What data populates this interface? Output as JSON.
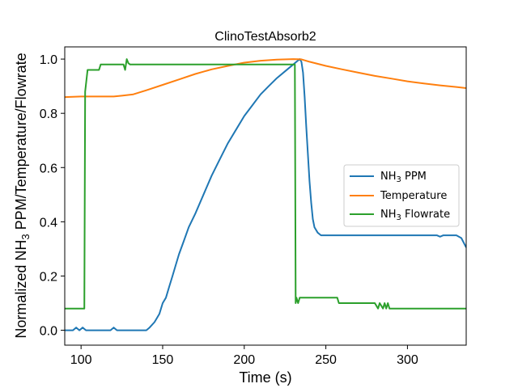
{
  "chart_data": {
    "type": "line",
    "title": "ClinoTestAbsorb2",
    "xlabel": "Time (s)",
    "ylabel_parts": [
      "Normalized NH",
      "3",
      " PPM/Temperature/Flowrate"
    ],
    "xlim": [
      90,
      336
    ],
    "ylim": [
      -0.055,
      1.045
    ],
    "xticks": [
      100,
      150,
      200,
      250,
      300
    ],
    "yticks": [
      0.0,
      0.2,
      0.4,
      0.6,
      0.8,
      1.0
    ],
    "ytick_labels": [
      "0.0",
      "0.2",
      "0.4",
      "0.6",
      "0.8",
      "1.0"
    ],
    "grid": false,
    "legend_position": "center-right",
    "series": [
      {
        "label_parts": [
          "NH",
          "3",
          " PPM"
        ],
        "color": "#1f77b4",
        "x": [
          90,
          95,
          97,
          99,
          101,
          103,
          105,
          110,
          118,
          120,
          122,
          130,
          140,
          142,
          145,
          148,
          150,
          152,
          154,
          156,
          158,
          160,
          163,
          166,
          170,
          175,
          180,
          185,
          190,
          195,
          200,
          205,
          210,
          215,
          220,
          225,
          228,
          230,
          232,
          234,
          235,
          236,
          237,
          238,
          239,
          240,
          241,
          242,
          243,
          245,
          247,
          250,
          260,
          280,
          300,
          318,
          320,
          322,
          330,
          333,
          336
        ],
        "y": [
          0.0,
          0.0,
          0.01,
          0.0,
          0.01,
          0.0,
          0.0,
          0.0,
          0.0,
          0.01,
          0.0,
          0.0,
          0.0,
          0.01,
          0.03,
          0.06,
          0.1,
          0.12,
          0.16,
          0.2,
          0.24,
          0.28,
          0.33,
          0.38,
          0.43,
          0.5,
          0.57,
          0.63,
          0.69,
          0.74,
          0.79,
          0.83,
          0.87,
          0.9,
          0.93,
          0.955,
          0.97,
          0.98,
          0.99,
          1.0,
          0.99,
          0.95,
          0.86,
          0.75,
          0.65,
          0.55,
          0.47,
          0.41,
          0.38,
          0.36,
          0.35,
          0.35,
          0.35,
          0.35,
          0.35,
          0.35,
          0.345,
          0.35,
          0.35,
          0.34,
          0.305
        ]
      },
      {
        "label_parts": [
          "Temperature"
        ],
        "color": "#ff7f0e",
        "x": [
          90,
          100,
          110,
          120,
          125,
          132,
          140,
          150,
          160,
          170,
          180,
          190,
          200,
          210,
          220,
          230,
          235,
          240,
          250,
          260,
          270,
          280,
          290,
          300,
          310,
          320,
          330,
          336
        ],
        "y": [
          0.86,
          0.862,
          0.862,
          0.862,
          0.865,
          0.87,
          0.885,
          0.905,
          0.925,
          0.945,
          0.962,
          0.975,
          0.987,
          0.994,
          0.998,
          1.0,
          0.999,
          0.99,
          0.975,
          0.962,
          0.95,
          0.938,
          0.928,
          0.918,
          0.91,
          0.903,
          0.897,
          0.893
        ]
      },
      {
        "label_parts": [
          "NH",
          "3",
          " Flowrate"
        ],
        "color": "#2ca02c",
        "x": [
          90,
          102,
          102.5,
          104,
          111,
          112,
          126,
          127,
          128,
          129,
          130,
          131,
          200,
          231,
          231.5,
          232,
          233,
          234,
          235,
          241,
          257,
          258,
          280,
          282,
          283,
          285,
          286,
          287,
          288,
          289,
          336
        ],
        "y": [
          0.08,
          0.08,
          0.88,
          0.96,
          0.96,
          0.98,
          0.98,
          0.96,
          1.0,
          0.985,
          0.98,
          0.98,
          0.98,
          0.98,
          0.1,
          0.12,
          0.1,
          0.12,
          0.12,
          0.12,
          0.12,
          0.1,
          0.1,
          0.08,
          0.1,
          0.08,
          0.1,
          0.08,
          0.1,
          0.08,
          0.08
        ]
      }
    ]
  }
}
